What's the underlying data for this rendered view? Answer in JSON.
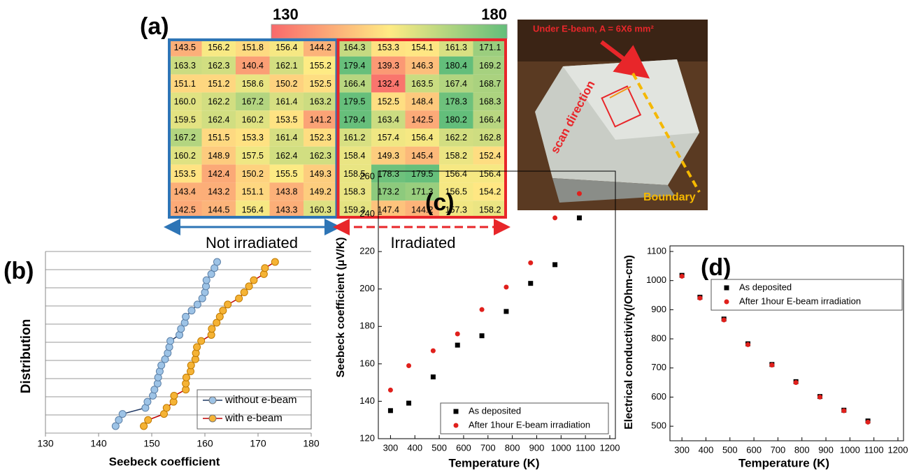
{
  "chart_data": [
    {
      "type": "heatmap",
      "panel_label": "(a)",
      "clim": [
        130,
        180
      ],
      "values": [
        [
          143.5,
          156.2,
          151.8,
          156.4,
          144.2,
          164.3,
          153.3,
          154.1,
          161.3,
          171.1
        ],
        [
          163.3,
          162.3,
          140.4,
          162.1,
          155.2,
          179.4,
          139.3,
          146.3,
          180.4,
          169.2
        ],
        [
          151.1,
          151.2,
          158.6,
          150.2,
          152.5,
          166.4,
          132.4,
          163.5,
          167.4,
          168.7
        ],
        [
          160.0,
          162.2,
          167.2,
          161.4,
          163.2,
          179.5,
          152.5,
          148.4,
          178.3,
          168.3
        ],
        [
          159.5,
          162.4,
          160.2,
          153.5,
          141.2,
          179.4,
          163.4,
          142.5,
          180.2,
          166.4
        ],
        [
          167.2,
          151.5,
          153.3,
          161.4,
          152.3,
          161.2,
          157.4,
          156.4,
          162.2,
          162.8
        ],
        [
          160.2,
          148.9,
          157.5,
          162.4,
          162.3,
          158.4,
          149.3,
          145.4,
          158.2,
          152.4
        ],
        [
          153.5,
          142.4,
          150.2,
          155.5,
          149.3,
          158.5,
          178.3,
          179.5,
          156.4,
          156.4
        ],
        [
          143.4,
          143.2,
          151.1,
          143.8,
          149.2,
          158.3,
          173.2,
          171.3,
          156.5,
          154.2
        ],
        [
          142.5,
          144.5,
          156.4,
          143.3,
          160.3,
          159.3,
          147.4,
          144.2,
          157.3,
          158.2
        ]
      ],
      "value_labels": [
        [
          "143.5",
          "156.2",
          "151.8",
          "156.4",
          "144.2",
          "164.3",
          "153.3",
          "154.1",
          "161.3",
          "171.1"
        ],
        [
          "163.3",
          "162.3",
          "140.4",
          "162.1",
          "155.2",
          "179.4",
          "139.3",
          "146.3",
          "180.4",
          "169.2"
        ],
        [
          "151.1",
          "151.2",
          "158.6",
          "150.2",
          "152.5",
          "166.4",
          "132.4",
          "163.5",
          "167.4",
          "168.7"
        ],
        [
          "160.0",
          "162.2",
          "167.2",
          "161.4",
          "163.2",
          "179.5",
          "152.5",
          "148.4",
          "178.3",
          "168.3"
        ],
        [
          "159.5",
          "162.4",
          "160.2",
          "153.5",
          "141.2",
          "179.4",
          "163.4",
          "142.5",
          "180.2",
          "166.4"
        ],
        [
          "167.2",
          "151.5",
          "153.3",
          "161.4",
          "152.3",
          "161.2",
          "157.4",
          "156.4",
          "162.2",
          "162.8"
        ],
        [
          "160.2",
          "148.9",
          "157.5",
          "162.4",
          "162.3",
          "158.4",
          "149.3",
          "145.4",
          "158.2",
          "152.4"
        ],
        [
          "153.5",
          "142.4",
          "150.2",
          "155.5",
          "149.3",
          "158.5",
          "178.3",
          "179.5",
          "156.4",
          "156.4"
        ],
        [
          "143.4",
          "143.2",
          "151.1",
          "143.8",
          "149.2",
          "158.3",
          "173.2",
          "171.3",
          "156.5",
          "154.2"
        ],
        [
          "142.5",
          "144.5",
          "156.4",
          "143.3",
          "160.3",
          "159.3",
          "147.4",
          "144.2",
          "157.3",
          "158.2"
        ]
      ],
      "groups": [
        "Not irradiated",
        "Irradiated"
      ],
      "photo_labels": [
        "Under E-beam, A = 6X6 mm²",
        "scan direction",
        "Boundary"
      ]
    },
    {
      "type": "line",
      "panel_label": "(b)",
      "xlabel": "Seebeck coefficient",
      "ylabel": "Distribution",
      "xlim": [
        130,
        180
      ],
      "xticks": [
        130,
        140,
        150,
        160,
        170,
        180
      ],
      "grid": true,
      "series": [
        {
          "name": "without e-beam",
          "color": "#1f3864",
          "marker_color": "#9dc3e6",
          "values": [
            143.2,
            143.8,
            144.5,
            148.8,
            149.2,
            150.2,
            150.5,
            151.1,
            151.2,
            151.5,
            151.8,
            152.5,
            153.0,
            153.3,
            153.5,
            155.2,
            155.5,
            156.2,
            156.4,
            157.5,
            158.6,
            159.5,
            160.0,
            160.2,
            160.3,
            161.2,
            161.8,
            162.3
          ]
        },
        {
          "name": "with e-beam",
          "color": "#c00000",
          "marker_color": "#f5b335",
          "values": [
            148.5,
            149.3,
            152.3,
            152.8,
            154.1,
            154.2,
            156.4,
            156.4,
            156.5,
            157.3,
            157.4,
            158.2,
            158.3,
            158.5,
            159.3,
            161.2,
            161.3,
            162.2,
            162.8,
            163.4,
            164.3,
            166.4,
            167.4,
            168.3,
            169.2,
            171.1,
            171.3,
            173.2
          ]
        }
      ]
    },
    {
      "type": "scatter",
      "panel_label": "(c)",
      "xlabel": "Temperature (K)",
      "ylabel": "Seebeck coefficient (μV/K)",
      "xlim": [
        250,
        1200
      ],
      "xticks": [
        300,
        400,
        500,
        600,
        700,
        800,
        900,
        1000,
        1100,
        1200
      ],
      "ylim": [
        120,
        260
      ],
      "yticks": [
        120,
        140,
        160,
        180,
        200,
        220,
        240,
        260
      ],
      "x": [
        300,
        375,
        475,
        575,
        675,
        775,
        875,
        975,
        1075
      ],
      "series": [
        {
          "name": "As deposited",
          "color": "#000000",
          "marker": "square",
          "values": [
            135,
            139,
            153,
            170,
            175,
            188,
            203,
            213,
            238
          ]
        },
        {
          "name": "After 1hour E-beam irradiation",
          "color": "#e0201c",
          "marker": "circle",
          "values": [
            146,
            159,
            167,
            176,
            189,
            201,
            214,
            238,
            251
          ]
        }
      ]
    },
    {
      "type": "scatter",
      "panel_label": "(d)",
      "xlabel": "Temperature (K)",
      "ylabel": "Electrical conductivity(/Ohm-cm)",
      "xlim": [
        250,
        1200
      ],
      "xticks": [
        300,
        400,
        500,
        600,
        700,
        800,
        900,
        1000,
        1100,
        1200
      ],
      "ylim": [
        450,
        1100
      ],
      "yticks": [
        500,
        600,
        700,
        800,
        900,
        1000,
        1100
      ],
      "x": [
        300,
        375,
        475,
        575,
        675,
        775,
        875,
        975,
        1075
      ],
      "series": [
        {
          "name": "As deposited",
          "color": "#000000",
          "marker": "square",
          "values": [
            1018,
            943,
            868,
            783,
            712,
            653,
            602,
            555,
            518
          ]
        },
        {
          "name": "After 1hour E-beam irradiation",
          "color": "#e0201c",
          "marker": "circle",
          "values": [
            1015,
            940,
            865,
            780,
            710,
            650,
            600,
            553,
            514
          ]
        }
      ]
    }
  ]
}
